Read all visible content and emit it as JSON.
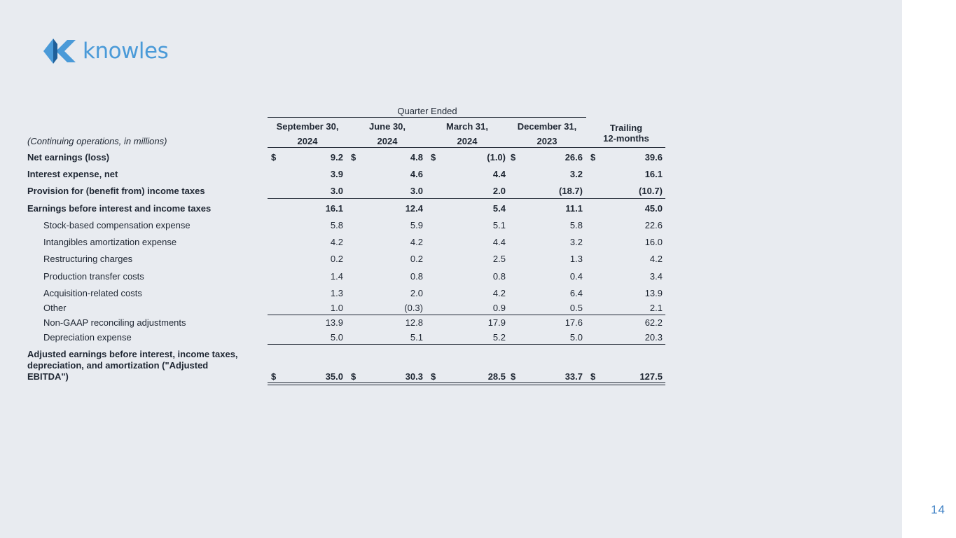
{
  "logo": {
    "text": "knowles"
  },
  "page_number": "14",
  "table": {
    "group_header": "Quarter Ended",
    "units_label": "(Continuing operations, in millions)",
    "columns": [
      {
        "line1": "September 30,",
        "line2": "2024"
      },
      {
        "line1": "June 30,",
        "line2": "2024"
      },
      {
        "line1": "March 31,",
        "line2": "2024"
      },
      {
        "line1": "December 31,",
        "line2": "2023"
      }
    ],
    "trailing": {
      "line1": "Trailing",
      "line2": "12-months"
    },
    "currency": "$",
    "rows": [
      {
        "label": "Net earnings (loss)",
        "values": [
          "9.2",
          "4.8",
          "(1.0)",
          "26.6",
          "39.6"
        ]
      },
      {
        "label": "Interest expense, net",
        "values": [
          "3.9",
          "4.6",
          "4.4",
          "3.2",
          "16.1"
        ]
      },
      {
        "label": "Provision for (benefit from) income taxes",
        "values": [
          "3.0",
          "3.0",
          "2.0",
          "(18.7)",
          "(10.7)"
        ]
      },
      {
        "label": "Earnings before interest and income taxes",
        "values": [
          "16.1",
          "12.4",
          "5.4",
          "11.1",
          "45.0"
        ]
      },
      {
        "label": "Stock-based compensation expense",
        "values": [
          "5.8",
          "5.9",
          "5.1",
          "5.8",
          "22.6"
        ]
      },
      {
        "label": "Intangibles amortization expense",
        "values": [
          "4.2",
          "4.2",
          "4.4",
          "3.2",
          "16.0"
        ]
      },
      {
        "label": "Restructuring charges",
        "values": [
          "0.2",
          "0.2",
          "2.5",
          "1.3",
          "4.2"
        ]
      },
      {
        "label": "Production transfer costs",
        "values": [
          "1.4",
          "0.8",
          "0.8",
          "0.4",
          "3.4"
        ]
      },
      {
        "label": "Acquisition-related costs",
        "values": [
          "1.3",
          "2.0",
          "4.2",
          "6.4",
          "13.9"
        ]
      },
      {
        "label": "Other",
        "values": [
          "1.0",
          "(0.3)",
          "0.9",
          "0.5",
          "2.1"
        ]
      },
      {
        "label": "Non-GAAP reconciling adjustments",
        "values": [
          "13.9",
          "12.8",
          "17.9",
          "17.6",
          "62.2"
        ]
      },
      {
        "label": "Depreciation expense",
        "values": [
          "5.0",
          "5.1",
          "5.2",
          "5.0",
          "20.3"
        ]
      },
      {
        "label": "Adjusted earnings before interest, income taxes,",
        "label2": "depreciation, and amortization (\"Adjusted",
        "label3": "EBITDA\")",
        "values": [
          "35.0",
          "30.3",
          "28.5",
          "33.7",
          "127.5"
        ]
      }
    ]
  }
}
